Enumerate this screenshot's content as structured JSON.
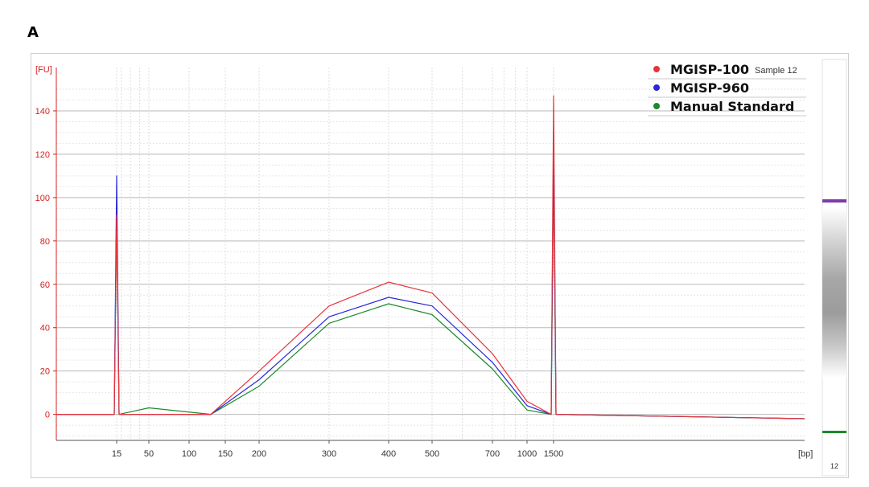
{
  "panel_label": "A",
  "sample_label": "Sample 12",
  "lane_number": "12",
  "colors": {
    "red": "#e8333a",
    "blue": "#2828d8",
    "green": "#1a8a2a",
    "axis": "#d62020"
  },
  "chart_data": {
    "type": "line",
    "xscale": "log",
    "ylabel": "[FU]",
    "xlabel": "[bp]",
    "ylim": [
      -12,
      160
    ],
    "yticks": [
      0,
      20,
      40,
      60,
      80,
      100,
      120,
      140
    ],
    "xticks": [
      "15",
      "50",
      "100",
      "150",
      "200",
      "300",
      "400",
      "500",
      "700",
      "1000",
      "1500"
    ],
    "legend_position": "top-right",
    "series": [
      {
        "name": "MGISP-100",
        "color": "#e8333a",
        "points": [
          [
            15,
            0
          ],
          [
            15,
            92
          ],
          [
            15,
            0
          ],
          [
            130,
            0
          ],
          [
            200,
            20
          ],
          [
            300,
            50
          ],
          [
            400,
            61
          ],
          [
            500,
            56
          ],
          [
            700,
            28
          ],
          [
            1000,
            6
          ],
          [
            1500,
            0
          ],
          [
            1500,
            147
          ],
          [
            1500,
            0
          ]
        ]
      },
      {
        "name": "MGISP-960",
        "color": "#2828d8",
        "points": [
          [
            15,
            0
          ],
          [
            15,
            110
          ],
          [
            15,
            0
          ],
          [
            130,
            0
          ],
          [
            200,
            16
          ],
          [
            300,
            45
          ],
          [
            400,
            54
          ],
          [
            500,
            50
          ],
          [
            700,
            24
          ],
          [
            1000,
            4
          ],
          [
            1500,
            0
          ],
          [
            1500,
            128
          ],
          [
            1500,
            0
          ]
        ]
      },
      {
        "name": "Manual Standard",
        "color": "#1a8a2a",
        "points": [
          [
            15,
            0
          ],
          [
            15,
            95
          ],
          [
            15,
            0
          ],
          [
            50,
            3
          ],
          [
            130,
            0
          ],
          [
            200,
            13
          ],
          [
            300,
            42
          ],
          [
            400,
            51
          ],
          [
            500,
            46
          ],
          [
            700,
            21
          ],
          [
            1000,
            2
          ],
          [
            1500,
            0
          ],
          [
            1500,
            115
          ],
          [
            1500,
            0
          ]
        ]
      }
    ]
  }
}
